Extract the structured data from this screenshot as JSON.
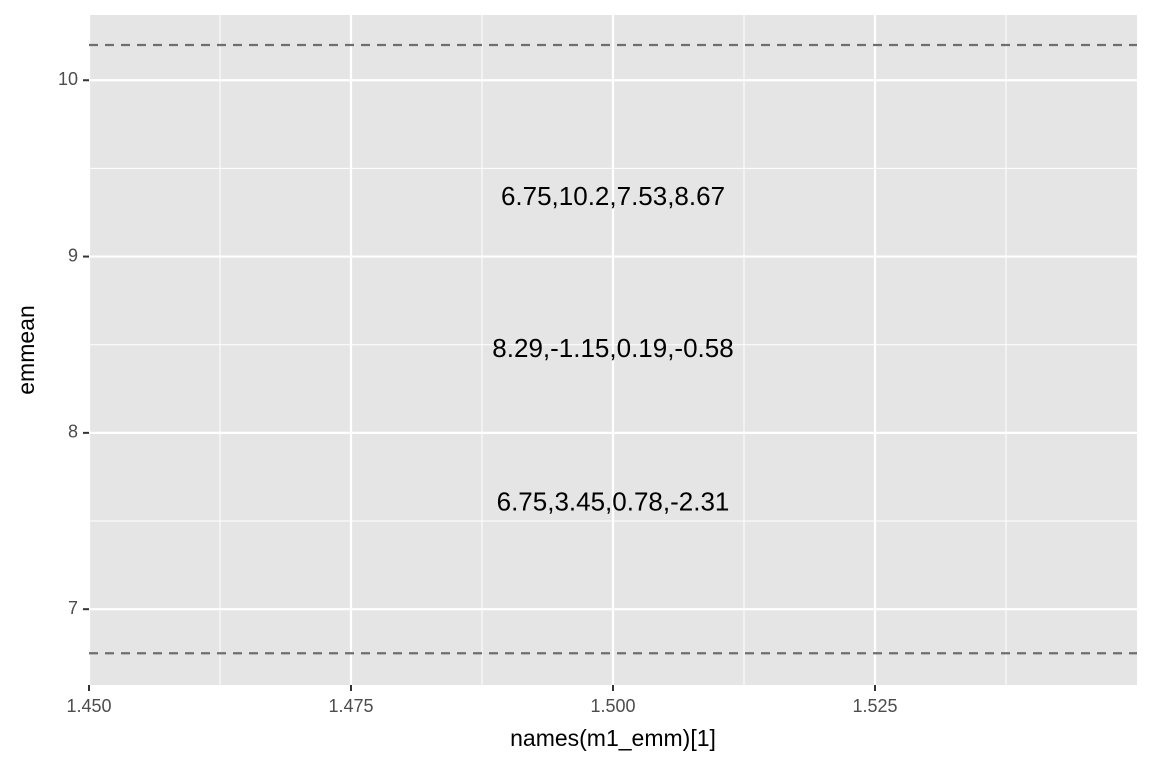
{
  "chart_data": {
    "type": "annotation",
    "x_label": "names(m1_emm)[1]",
    "y_label": "emmean",
    "xlim": [
      1.45,
      1.55
    ],
    "ylim": [
      6.57,
      10.37
    ],
    "xticks": [
      {
        "value": 1.45,
        "label": "1.450"
      },
      {
        "value": 1.475,
        "label": "1.475"
      },
      {
        "value": 1.5,
        "label": "1.500"
      },
      {
        "value": 1.525,
        "label": "1.525"
      }
    ],
    "yticks": [
      7,
      8,
      9,
      10
    ],
    "xminor": [
      1.4625,
      1.4875,
      1.5125,
      1.5375
    ],
    "yminor": [
      7.5,
      8.5,
      9.5
    ],
    "grid": true,
    "hlines": [
      10.2,
      6.75
    ],
    "hline_color": "#6f6f6f",
    "labels": [
      {
        "x": 1.5,
        "y": 9.33,
        "text": "6.75,10.2,7.53,8.67"
      },
      {
        "x": 1.5,
        "y": 8.47,
        "text": "8.29,-1.15,0.19,-0.58"
      },
      {
        "x": 1.5,
        "y": 7.6,
        "text": "6.75,3.45,0.78,-2.31"
      }
    ]
  }
}
